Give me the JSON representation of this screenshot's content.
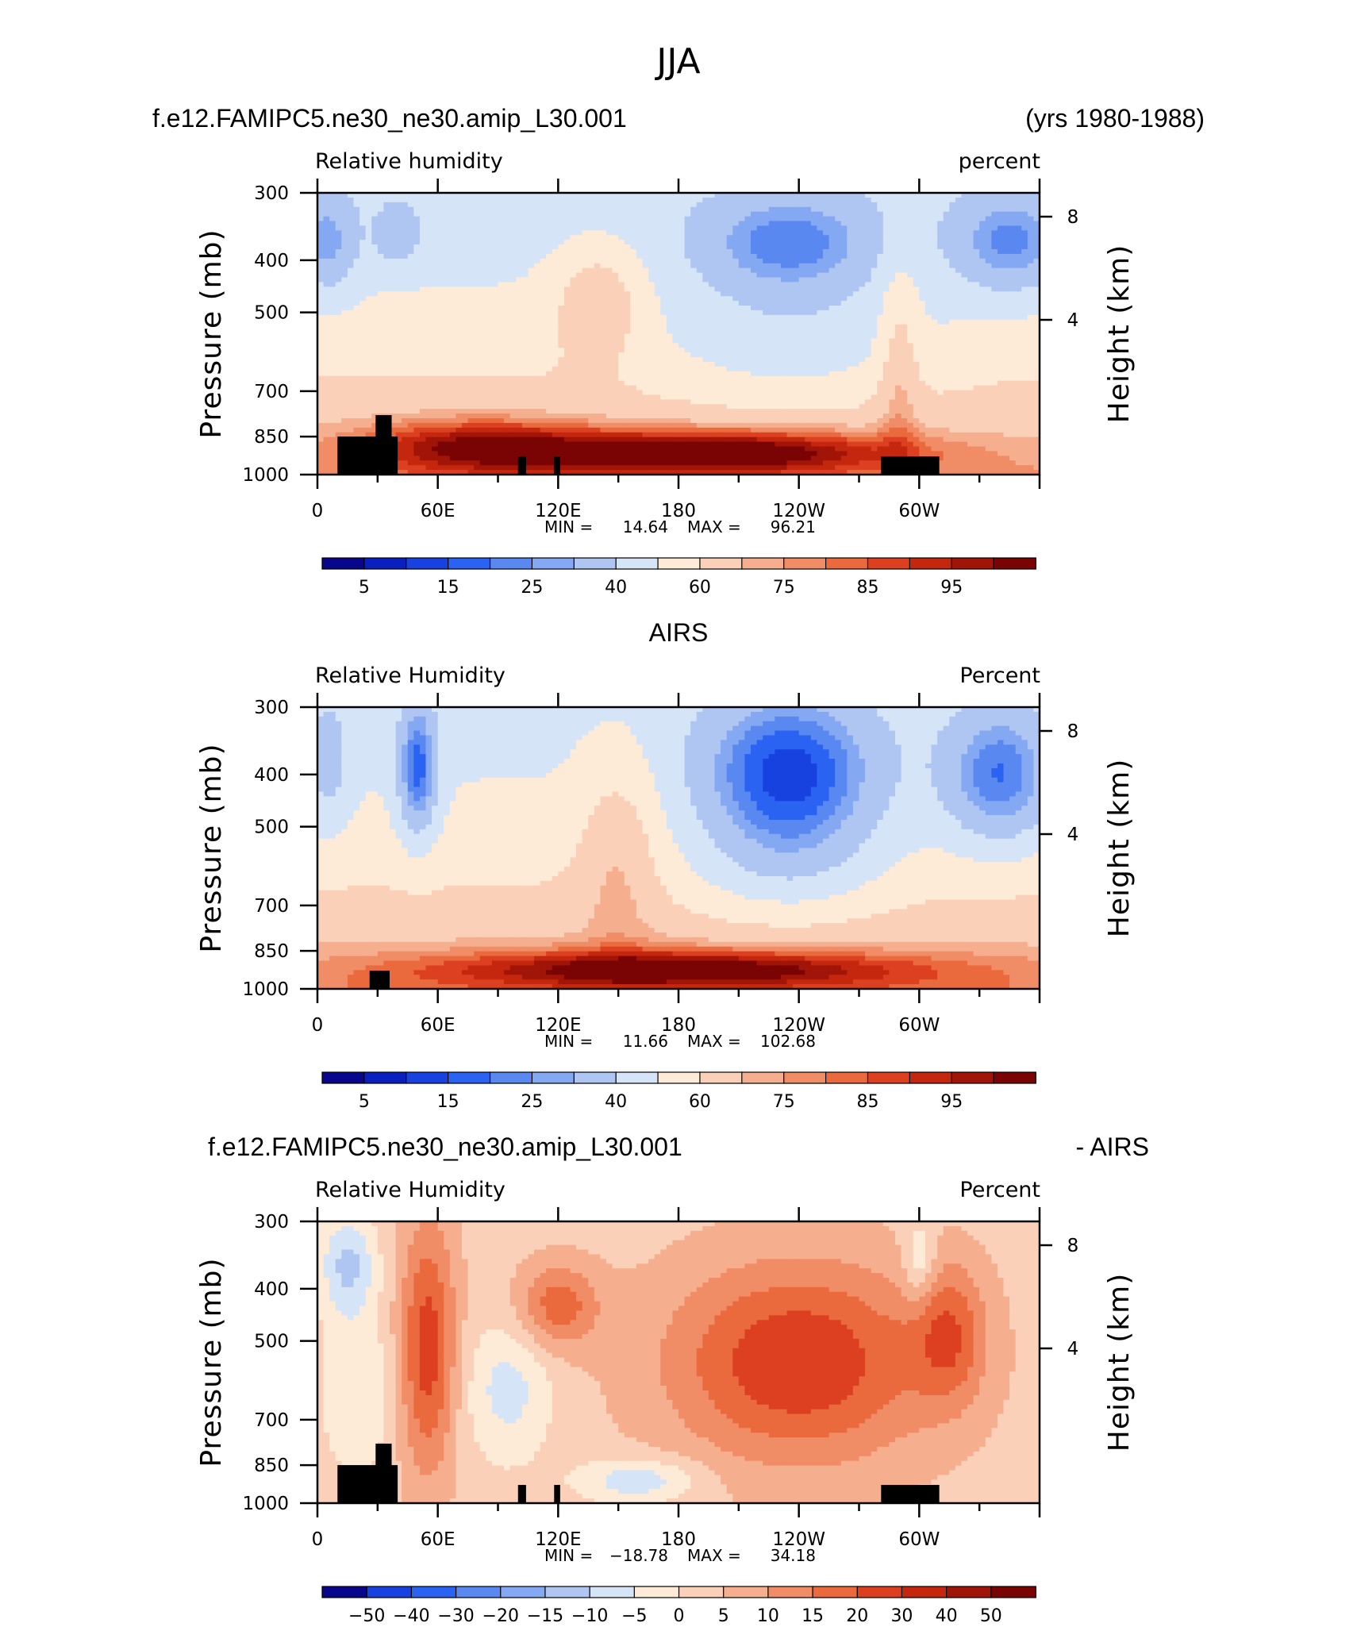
{
  "figure": {
    "title": "JJA",
    "palette": [
      "#08068a",
      "#0a1fbf",
      "#1842e0",
      "#2a63f2",
      "#5888f0",
      "#84a8f2",
      "#b0c6f2",
      "#d6e4f7",
      "#fdebd8",
      "#fad0b8",
      "#f6af8e",
      "#f08c66",
      "#ea6a3e",
      "#dc4020",
      "#c4270e",
      "#a11408",
      "#7a0404"
    ]
  },
  "chart_data": [
    {
      "type": "heatmap",
      "heading_left": "f.e12.FAMIPC5.ne30_ne30.amip_L30.001",
      "heading_right": "(yrs 1980-1988)",
      "variable": "Relative humidity",
      "units": "percent",
      "ylabel": "Pressure (mb)",
      "ylabel_right": "Height (km)",
      "yticks": [
        "300",
        "400",
        "500",
        "700",
        "850",
        "1000"
      ],
      "ytick_values": [
        300,
        400,
        500,
        700,
        850,
        1000
      ],
      "ylim": [
        1000,
        300
      ],
      "yticks_right": [
        "8",
        "4"
      ],
      "xticks": [
        "0",
        "60E",
        "120E",
        "180",
        "120W",
        "60W"
      ],
      "xlim_deg": [
        0,
        360
      ],
      "min_label": "MIN =",
      "min": "14.64",
      "max_label": "MAX =",
      "max": "96.21",
      "levels": [
        "5",
        "15",
        "25",
        "40",
        "60",
        "75",
        "85",
        "95"
      ],
      "orography_deg": [
        [
          10,
          40,
          850
        ],
        [
          100,
          104,
          925
        ],
        [
          118,
          121,
          925
        ],
        [
          281,
          310,
          925
        ]
      ]
    },
    {
      "type": "heatmap",
      "heading_left": "",
      "heading_center": "AIRS",
      "heading_right": "",
      "variable": "Relative Humidity",
      "units": "Percent",
      "ylabel": "Pressure (mb)",
      "ylabel_right": "Height (km)",
      "yticks": [
        "300",
        "400",
        "500",
        "700",
        "850",
        "1000"
      ],
      "ytick_values": [
        300,
        400,
        500,
        700,
        850,
        1000
      ],
      "ylim": [
        1000,
        300
      ],
      "yticks_right": [
        "8",
        "4"
      ],
      "xticks": [
        "0",
        "60E",
        "120E",
        "180",
        "120W",
        "60W"
      ],
      "xlim_deg": [
        0,
        360
      ],
      "min_label": "MIN =",
      "min": "11.66",
      "max_label": "MAX =",
      "max": "102.68",
      "levels": [
        "5",
        "15",
        "25",
        "40",
        "60",
        "75",
        "85",
        "95"
      ],
      "orography_deg": [
        [
          26,
          36,
          925
        ]
      ]
    },
    {
      "type": "heatmap",
      "heading_left": "f.e12.FAMIPC5.ne30_ne30.amip_L30.001",
      "heading_right": "- AIRS",
      "variable": "Relative Humidity",
      "units": "Percent",
      "ylabel": "Pressure (mb)",
      "ylabel_right": "Height (km)",
      "yticks": [
        "300",
        "400",
        "500",
        "700",
        "850",
        "1000"
      ],
      "ytick_values": [
        300,
        400,
        500,
        700,
        850,
        1000
      ],
      "ylim": [
        1000,
        300
      ],
      "yticks_right": [
        "8",
        "4"
      ],
      "xticks": [
        "0",
        "60E",
        "120E",
        "180",
        "120W",
        "60W"
      ],
      "xlim_deg": [
        0,
        360
      ],
      "min_label": "MIN =",
      "min": "−18.78",
      "max_label": "MAX =",
      "max": "34.18",
      "levels": [
        "−50",
        "−40",
        "−30",
        "−20",
        "−15",
        "−10",
        "−5",
        "0",
        "5",
        "10",
        "15",
        "20",
        "30",
        "40",
        "50"
      ],
      "orography_deg": [
        [
          10,
          40,
          850
        ],
        [
          100,
          104,
          925
        ],
        [
          118,
          121,
          925
        ],
        [
          281,
          310,
          925
        ]
      ]
    }
  ]
}
